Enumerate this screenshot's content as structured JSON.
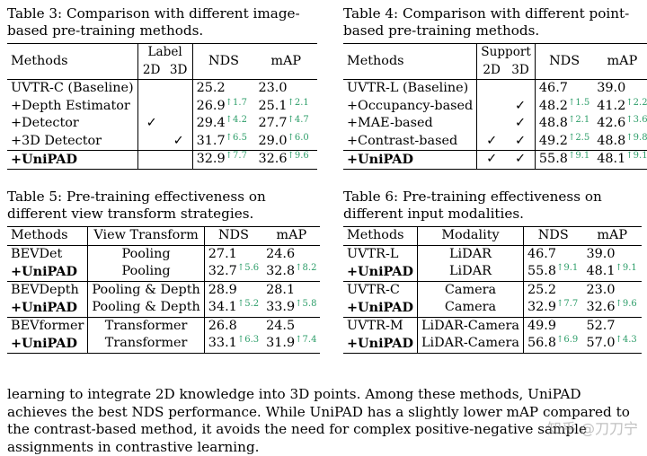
{
  "table3": {
    "caption": "Table 3:  Comparison with different image-based pre-training methods.",
    "headers": {
      "methods": "Methods",
      "label": "Label",
      "label_2d": "2D",
      "label_3d": "3D",
      "nds": "NDS",
      "map": "mAP"
    },
    "rows": [
      {
        "method": "UVTR-C (Baseline)",
        "c2d": "",
        "c3d": "",
        "nds": "25.2",
        "nds_d": "",
        "map": "23.0",
        "map_d": ""
      },
      {
        "method": "+Depth Estimator",
        "c2d": "",
        "c3d": "",
        "nds": "26.9",
        "nds_d": "↑1.7",
        "map": "25.1",
        "map_d": "↑2.1"
      },
      {
        "method": "+Detector",
        "c2d": "✓",
        "c3d": "",
        "nds": "29.4",
        "nds_d": "↑4.2",
        "map": "27.7",
        "map_d": "↑4.7"
      },
      {
        "method": "+3D Detector",
        "c2d": "",
        "c3d": "✓",
        "nds": "31.7",
        "nds_d": "↑6.5",
        "map": "29.0",
        "map_d": "↑6.0"
      }
    ],
    "final": {
      "method": "+UniPAD",
      "c2d": "",
      "c3d": "",
      "nds": "32.9",
      "nds_d": "↑7.7",
      "map": "32.6",
      "map_d": "↑9.6"
    }
  },
  "table4": {
    "caption": "Table 4:  Comparison with different point-based pre-training methods.",
    "headers": {
      "methods": "Methods",
      "support": "Support",
      "support_2d": "2D",
      "support_3d": "3D",
      "nds": "NDS",
      "map": "mAP"
    },
    "rows": [
      {
        "method": "UVTR-L (Baseline)",
        "c2d": "",
        "c3d": "",
        "nds": "46.7",
        "nds_d": "",
        "map": "39.0",
        "map_d": ""
      },
      {
        "method": "+Occupancy-based",
        "c2d": "",
        "c3d": "✓",
        "nds": "48.2",
        "nds_d": "↑1.5",
        "map": "41.2",
        "map_d": "↑2.2"
      },
      {
        "method": "+MAE-based",
        "c2d": "",
        "c3d": "✓",
        "nds": "48.8",
        "nds_d": "↑2.1",
        "map": "42.6",
        "map_d": "↑3.6"
      },
      {
        "method": "+Contrast-based",
        "c2d": "✓",
        "c3d": "✓",
        "nds": "49.2",
        "nds_d": "↑2.5",
        "map": "48.8",
        "map_d": "↑9.8"
      }
    ],
    "final": {
      "method": "+UniPAD",
      "c2d": "✓",
      "c3d": "✓",
      "nds": "55.8",
      "nds_d": "↑9.1",
      "map": "48.1",
      "map_d": "↑9.1"
    }
  },
  "table5": {
    "caption": "Table 5: Pre-training effectiveness on different view transform strategies.",
    "headers": {
      "methods": "Methods",
      "mid": "View Transform",
      "nds": "NDS",
      "map": "mAP"
    },
    "groups": [
      [
        {
          "method": "BEVDet",
          "bold": false,
          "mid": "Pooling",
          "nds": "27.1",
          "nds_d": "",
          "map": "24.6",
          "map_d": ""
        },
        {
          "method": "+UniPAD",
          "bold": true,
          "mid": "Pooling",
          "nds": "32.7",
          "nds_d": "↑5.6",
          "map": "32.8",
          "map_d": "↑8.2"
        }
      ],
      [
        {
          "method": "BEVDepth",
          "bold": false,
          "mid": "Pooling & Depth",
          "nds": "28.9",
          "nds_d": "",
          "map": "28.1",
          "map_d": ""
        },
        {
          "method": "+UniPAD",
          "bold": true,
          "mid": "Pooling & Depth",
          "nds": "34.1",
          "nds_d": "↑5.2",
          "map": "33.9",
          "map_d": "↑5.8"
        }
      ],
      [
        {
          "method": "BEVformer",
          "bold": false,
          "mid": "Transformer",
          "nds": "26.8",
          "nds_d": "",
          "map": "24.5",
          "map_d": ""
        },
        {
          "method": "+UniPAD",
          "bold": true,
          "mid": "Transformer",
          "nds": "33.1",
          "nds_d": "↑6.3",
          "map": "31.9",
          "map_d": "↑7.4"
        }
      ]
    ]
  },
  "table6": {
    "caption": "Table 6: Pre-training effectiveness on different input modalities.",
    "headers": {
      "methods": "Methods",
      "mid": "Modality",
      "nds": "NDS",
      "map": "mAP"
    },
    "groups": [
      [
        {
          "method": "UVTR-L",
          "bold": false,
          "mid": "LiDAR",
          "nds": "46.7",
          "nds_d": "",
          "map": "39.0",
          "map_d": ""
        },
        {
          "method": "+UniPAD",
          "bold": true,
          "mid": "LiDAR",
          "nds": "55.8",
          "nds_d": "↑9.1",
          "map": "48.1",
          "map_d": "↑9.1"
        }
      ],
      [
        {
          "method": "UVTR-C",
          "bold": false,
          "mid": "Camera",
          "nds": "25.2",
          "nds_d": "",
          "map": "23.0",
          "map_d": ""
        },
        {
          "method": "+UniPAD",
          "bold": true,
          "mid": "Camera",
          "nds": "32.9",
          "nds_d": "↑7.7",
          "map": "32.6",
          "map_d": "↑9.6"
        }
      ],
      [
        {
          "method": "UVTR-M",
          "bold": false,
          "mid": "LiDAR-Camera",
          "nds": "49.9",
          "nds_d": "",
          "map": "52.7",
          "map_d": ""
        },
        {
          "method": "+UniPAD",
          "bold": true,
          "mid": "LiDAR-Camera",
          "nds": "56.8",
          "nds_d": "↑6.9",
          "map": "57.0",
          "map_d": "↑4.3"
        }
      ]
    ]
  },
  "paragraph": "learning to integrate 2D knowledge into 3D points. Among these methods, UniPAD achieves the best NDS performance. While UniPAD has a slightly lower mAP compared to the contrast-based method, it avoids the need for complex positive-negative sample assignments in contrastive learning.",
  "watermark": "知乎 @刀刀宁"
}
